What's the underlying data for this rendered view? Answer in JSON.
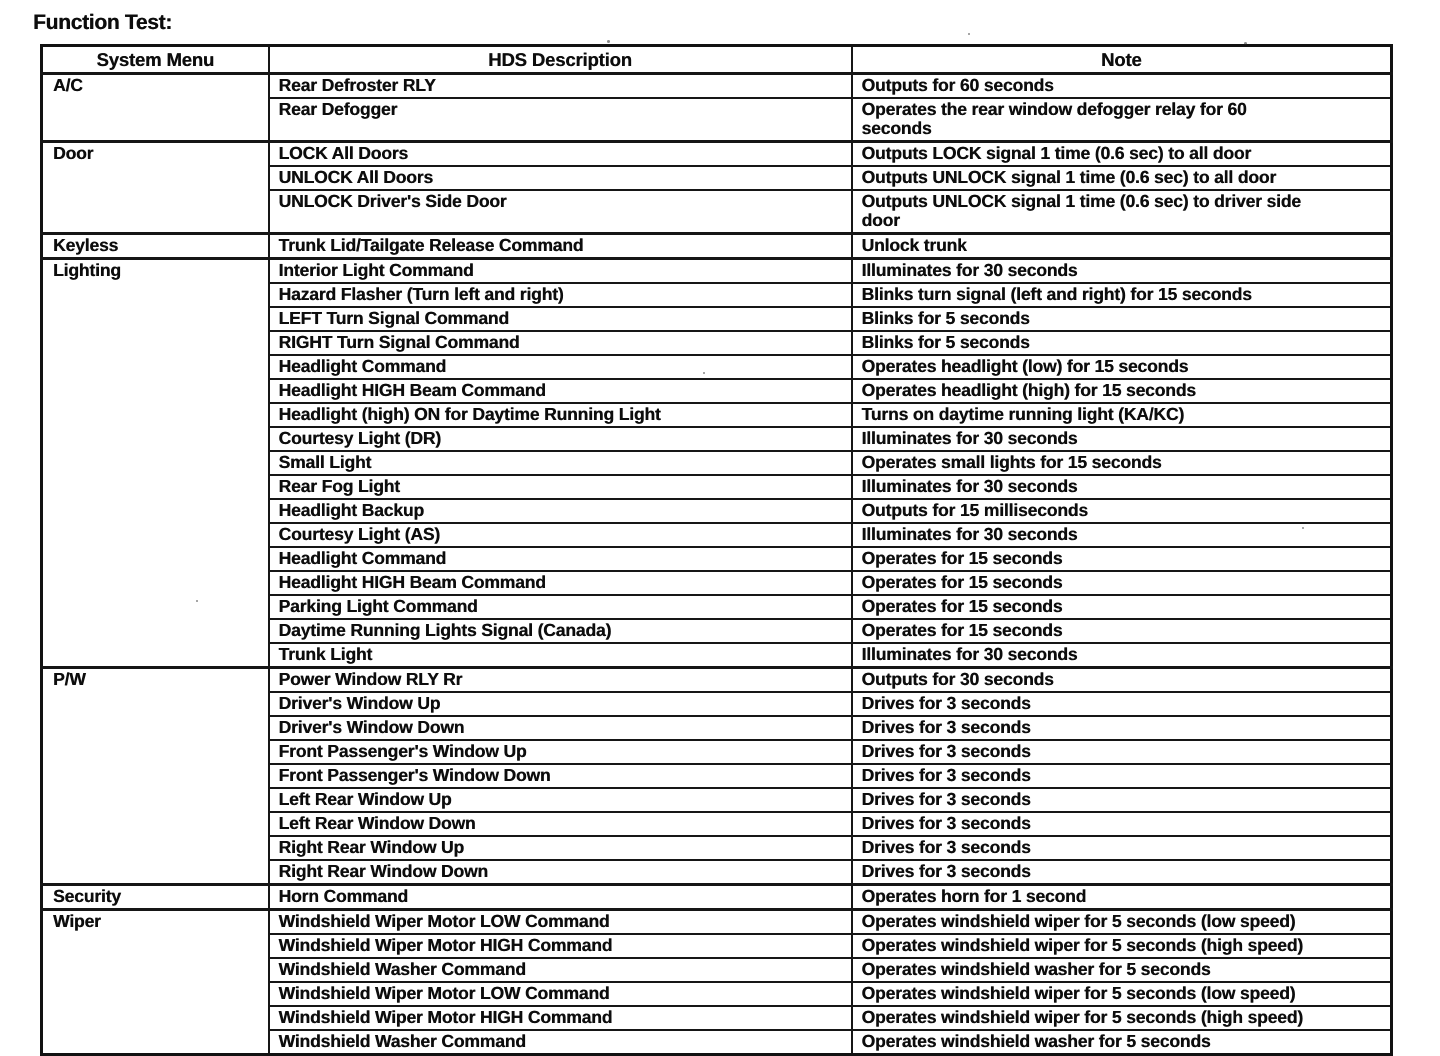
{
  "page_title": "Function Test:",
  "table": {
    "columns": [
      "System Menu",
      "HDS Description",
      "Note"
    ],
    "sections": [
      {
        "menu": "A/C",
        "rows": [
          {
            "desc": "Rear Defroster RLY",
            "note": "Outputs for 60 seconds"
          },
          {
            "desc": "Rear Defogger",
            "note": "Operates the rear window defogger relay for 60\nseconds"
          }
        ]
      },
      {
        "menu": "Door",
        "rows": [
          {
            "desc": "LOCK All Doors",
            "note": "Outputs LOCK signal 1 time (0.6 sec) to all door"
          },
          {
            "desc": "UNLOCK All Doors",
            "note": "Outputs UNLOCK signal 1 time (0.6 sec) to all door"
          },
          {
            "desc": "UNLOCK Driver's Side Door",
            "note": "Outputs UNLOCK signal 1 time (0.6 sec) to driver side\ndoor"
          }
        ]
      },
      {
        "menu": "Keyless",
        "rows": [
          {
            "desc": "Trunk Lid/Tailgate Release Command",
            "note": "Unlock trunk"
          }
        ]
      },
      {
        "menu": "Lighting",
        "rows": [
          {
            "desc": "Interior Light Command",
            "note": "Illuminates for 30 seconds"
          },
          {
            "desc": "Hazard Flasher (Turn left and right)",
            "note": "Blinks turn signal (left and right) for 15 seconds"
          },
          {
            "desc": "LEFT Turn Signal Command",
            "note": "Blinks for 5 seconds"
          },
          {
            "desc": "RIGHT Turn Signal Command",
            "note": "Blinks for 5 seconds"
          },
          {
            "desc": "Headlight Command",
            "note": "Operates headlight (low) for 15 seconds"
          },
          {
            "desc": "Headlight HIGH Beam Command",
            "note": "Operates headlight (high) for 15 seconds"
          },
          {
            "desc": "Headlight (high) ON for Daytime Running Light",
            "note": "Turns on daytime running light (KA/KC)"
          },
          {
            "desc": "Courtesy Light (DR)",
            "note": "Illuminates for 30 seconds"
          },
          {
            "desc": "Small Light",
            "note": "Operates small lights for 15 seconds"
          },
          {
            "desc": "Rear Fog Light",
            "note": "Illuminates for 30 seconds"
          },
          {
            "desc": "Headlight Backup",
            "note": "Outputs for 15 milliseconds"
          },
          {
            "desc": "Courtesy Light (AS)",
            "note": "Illuminates for 30 seconds"
          },
          {
            "desc": "Headlight Command",
            "note": "Operates for 15 seconds"
          },
          {
            "desc": "Headlight HIGH Beam Command",
            "note": "Operates for 15 seconds"
          },
          {
            "desc": "Parking Light Command",
            "note": "Operates for 15 seconds"
          },
          {
            "desc": "Daytime Running Lights Signal (Canada)",
            "note": "Operates for 15 seconds"
          },
          {
            "desc": "Trunk Light",
            "note": "Illuminates for 30 seconds"
          }
        ]
      },
      {
        "menu": "P/W",
        "rows": [
          {
            "desc": "Power Window RLY Rr",
            "note": "Outputs for 30 seconds"
          },
          {
            "desc": "Driver's Window Up",
            "note": "Drives for 3 seconds"
          },
          {
            "desc": "Driver's Window Down",
            "note": "Drives for 3 seconds"
          },
          {
            "desc": "Front Passenger's Window Up",
            "note": "Drives for 3 seconds"
          },
          {
            "desc": "Front Passenger's Window Down",
            "note": "Drives for 3 seconds"
          },
          {
            "desc": "Left Rear Window Up",
            "note": "Drives for 3 seconds"
          },
          {
            "desc": "Left Rear Window Down",
            "note": "Drives for 3 seconds"
          },
          {
            "desc": "Right Rear Window Up",
            "note": "Drives for 3 seconds"
          },
          {
            "desc": "Right Rear Window Down",
            "note": "Drives for 3 seconds"
          }
        ]
      },
      {
        "menu": "Security",
        "rows": [
          {
            "desc": "Horn Command",
            "note": "Operates horn for 1 second"
          }
        ]
      },
      {
        "menu": "Wiper",
        "rows": [
          {
            "desc": "Windshield Wiper Motor LOW Command",
            "note": "Operates windshield wiper for 5 seconds (low speed)"
          },
          {
            "desc": "Windshield Wiper Motor HIGH Command",
            "note": "Operates windshield wiper for 5 seconds (high speed)"
          },
          {
            "desc": "Windshield Washer Command",
            "note": "Operates windshield washer for 5 seconds"
          },
          {
            "desc": "Windshield Wiper Motor LOW Command",
            "note": "Operates windshield wiper for 5 seconds (low speed)"
          },
          {
            "desc": "Windshield Wiper Motor HIGH Command",
            "note": "Operates windshield wiper for 5 seconds (high speed)"
          },
          {
            "desc": "Windshield Washer Command",
            "note": "Operates windshield washer for 5 seconds"
          }
        ]
      }
    ]
  }
}
